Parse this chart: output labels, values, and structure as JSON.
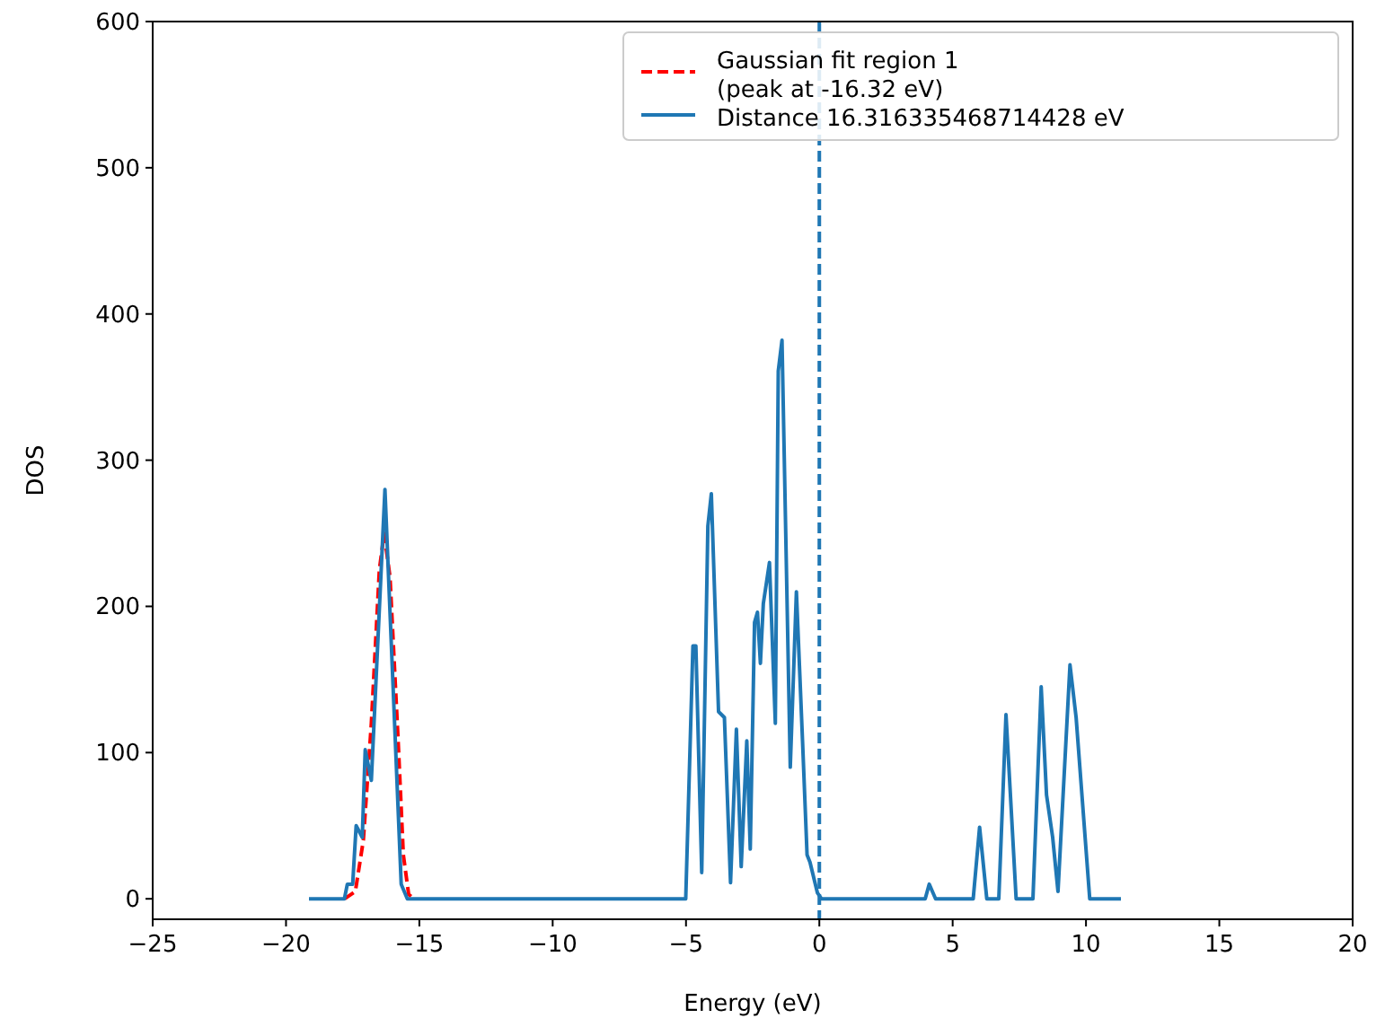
{
  "chart_data": {
    "type": "line",
    "xlabel": "Energy (eV)",
    "ylabel": "DOS",
    "xlim": [
      -25,
      20
    ],
    "ylim": [
      -14,
      600
    ],
    "xticks": [
      -25,
      -20,
      -15,
      -10,
      -5,
      0,
      5,
      10,
      15,
      20
    ],
    "yticks": [
      0,
      100,
      200,
      300,
      400,
      500,
      600
    ],
    "legend": "top right",
    "grid": false,
    "series": [
      {
        "name": "Gaussian fit region 1\n(peak at -16.32 eV)",
        "color": "#ff0000",
        "line_style": "dashed",
        "x": [
          -17.8,
          -17.4,
          -17.1,
          -16.8,
          -16.5,
          -16.32,
          -16.1,
          -15.8,
          -15.6,
          -15.4,
          -15.2
        ],
        "values": [
          0,
          5,
          40,
          120,
          225,
          250,
          220,
          110,
          30,
          3,
          0
        ]
      },
      {
        "name": "Distance 16.316335468714428 eV",
        "color": "#1f77b4",
        "line_style": "solid",
        "x": [
          -19.14,
          -17.81,
          -17.7,
          -17.5,
          -17.37,
          -17.14,
          -17.03,
          -16.8,
          -16.29,
          -15.68,
          -15.45,
          -5.01,
          -4.74,
          -4.63,
          -4.41,
          -4.18,
          -4.05,
          -3.78,
          -3.56,
          -3.33,
          -3.11,
          -2.93,
          -2.72,
          -2.59,
          -2.43,
          -2.32,
          -2.21,
          -2.1,
          -1.87,
          -1.65,
          -1.54,
          -1.4,
          -1.09,
          -0.86,
          -0.63,
          -0.46,
          -0.35,
          -0.07,
          0.08,
          3.97,
          4.12,
          4.36,
          5.77,
          6.01,
          6.28,
          6.73,
          7.0,
          7.38,
          8.01,
          8.32,
          8.52,
          8.75,
          8.95,
          9.4,
          9.63,
          10.14,
          11.31
        ],
        "values": [
          0,
          0,
          10,
          10,
          50,
          42,
          102,
          81,
          280,
          10,
          0,
          0,
          173,
          173,
          18,
          255,
          277,
          128,
          124,
          11,
          116,
          22,
          108,
          34,
          189,
          196,
          161,
          202,
          230,
          120,
          361,
          382,
          90,
          210,
          108,
          30,
          25,
          4,
          0,
          0,
          10,
          0,
          0,
          49,
          0,
          0,
          126,
          0,
          0,
          145,
          71,
          42,
          5,
          160,
          124,
          0,
          0
        ]
      }
    ],
    "ref_lines": [
      {
        "axis": "x",
        "value": 0,
        "color": "#1f77b4",
        "line_style": "dashed"
      }
    ]
  }
}
